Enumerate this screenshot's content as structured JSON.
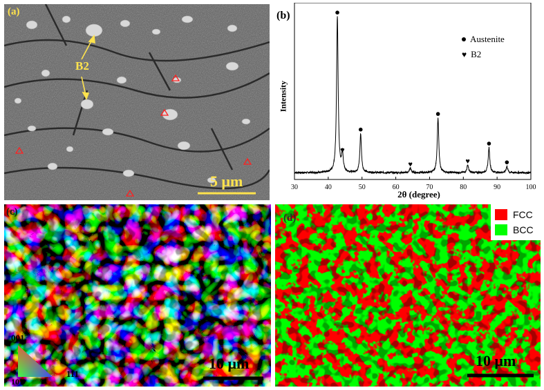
{
  "panels": {
    "a": {
      "label": "(a)",
      "annotation": "B2",
      "scale_bar": "5 μm"
    },
    "b": {
      "label": "(b)",
      "legend": [
        "Austenite",
        "B2"
      ]
    },
    "c": {
      "label": "(c)",
      "scale_bar": "10 μm",
      "ipf": {
        "top": "001",
        "left": "101",
        "right": "111"
      }
    },
    "d": {
      "label": "(d)",
      "scale_bar": "10 μm",
      "legend": [
        {
          "label": "FCC",
          "color": "#ff0000"
        },
        {
          "label": "BCC",
          "color": "#00ff00"
        }
      ]
    }
  },
  "chart_data": {
    "type": "line",
    "xlabel": "2θ (degree)",
    "ylabel": "Intensity",
    "xlim": [
      30,
      100
    ],
    "ylim": [
      0,
      100
    ],
    "xticks": [
      30,
      40,
      50,
      60,
      70,
      80,
      90,
      100
    ],
    "series": [
      {
        "name": "Austenite",
        "marker": "circle",
        "peaks": [
          [
            42.7,
            100
          ],
          [
            49.6,
            25
          ],
          [
            72.5,
            35
          ],
          [
            87.6,
            16
          ],
          [
            92.9,
            4
          ]
        ]
      },
      {
        "name": "B2",
        "marker": "heart",
        "peaks": [
          [
            44.2,
            12
          ],
          [
            64.3,
            3
          ],
          [
            81.3,
            5
          ]
        ]
      }
    ]
  }
}
